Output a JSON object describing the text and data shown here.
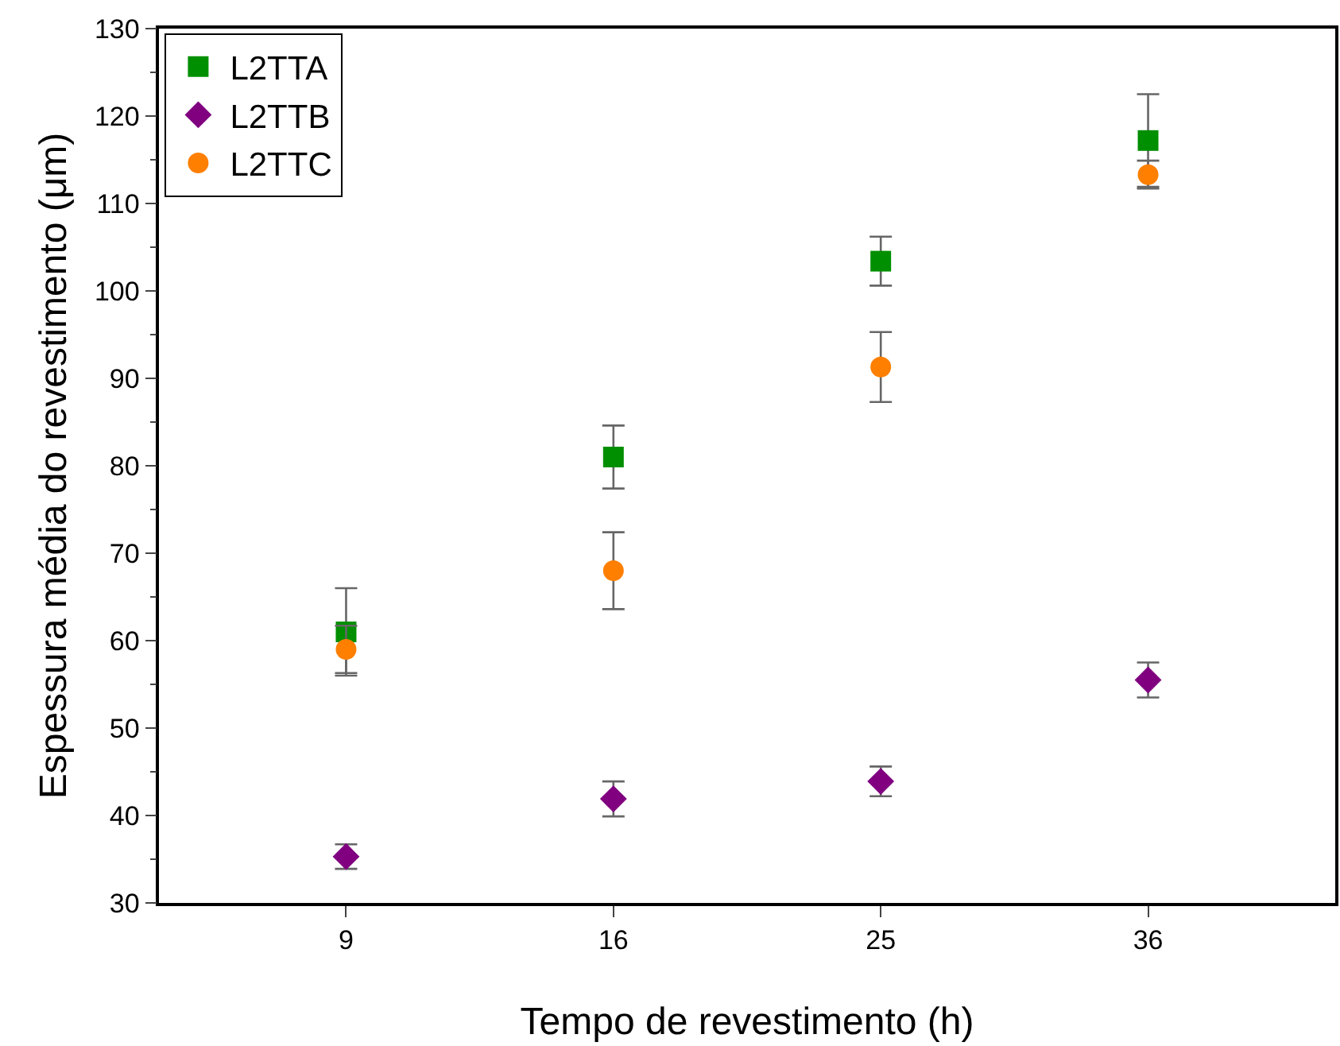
{
  "chart_data": {
    "type": "scatter",
    "xlabel": "Tempo de revestimento (h)",
    "ylabel": "Espessura média do revestimento (μm)",
    "categories": [
      "9",
      "16",
      "25",
      "36"
    ],
    "series": [
      {
        "name": "L2TTA",
        "color": "#008f00",
        "marker": "square",
        "values": [
          61.0,
          81.0,
          103.4,
          117.2
        ],
        "errors": [
          5.0,
          3.6,
          2.8,
          5.3
        ]
      },
      {
        "name": "L2TTB",
        "color": "#800080",
        "marker": "diamond",
        "values": [
          35.3,
          41.9,
          43.9,
          55.5
        ],
        "errors": [
          1.4,
          2.0,
          1.7,
          2.0
        ]
      },
      {
        "name": "L2TTC",
        "color": "#ff7f00",
        "marker": "circle",
        "values": [
          59.0,
          68.0,
          91.3,
          113.3
        ],
        "errors": [
          2.7,
          4.4,
          4.0,
          1.6
        ]
      }
    ],
    "ylim": [
      30,
      130
    ],
    "yticks": [
      30,
      40,
      50,
      60,
      70,
      80,
      90,
      100,
      110,
      120,
      130
    ],
    "grid": false,
    "legend": "top left"
  }
}
